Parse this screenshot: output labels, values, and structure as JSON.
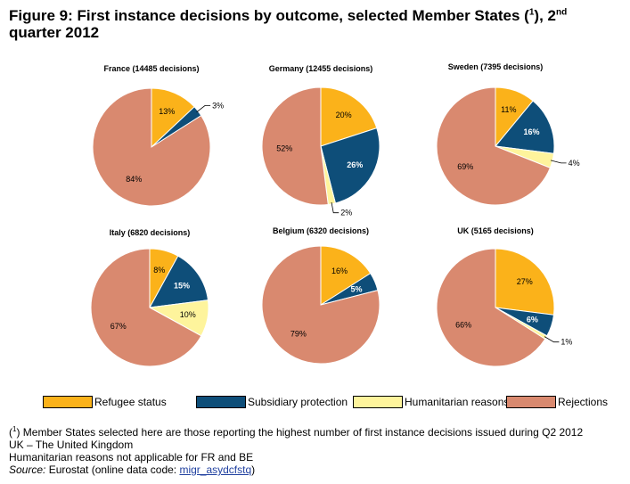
{
  "title": {
    "main": "Figure 9: First instance decisions by outcome, selected Member States (",
    "sup1": "1",
    "mid": "), 2",
    "sup2": "nd",
    "line2": "quarter 2012"
  },
  "colors": {
    "Refugee status": "#FBB21A",
    "Subsidiary protection": "#0E4E79",
    "Humanitarian reasons": "#FEF49C",
    "Rejections": "#D9896F"
  },
  "chart_data": [
    {
      "type": "pie",
      "title": "France (14485 decisions)",
      "categories": [
        "Refugee status",
        "Subsidiary protection",
        "Rejections"
      ],
      "values": [
        13,
        3,
        84
      ],
      "labels": [
        "13%",
        "3%",
        "84%"
      ]
    },
    {
      "type": "pie",
      "title": "Germany (12455 decisions)",
      "categories": [
        "Refugee status",
        "Subsidiary protection",
        "Humanitarian reasons",
        "Rejections"
      ],
      "values": [
        20,
        26,
        2,
        52
      ],
      "labels": [
        "20%",
        "26%",
        "2%",
        "52%"
      ]
    },
    {
      "type": "pie",
      "title": "Sweden (7395 decisions)",
      "categories": [
        "Refugee status",
        "Subsidiary protection",
        "Humanitarian reasons",
        "Rejections"
      ],
      "values": [
        11,
        16,
        4,
        69
      ],
      "labels": [
        "11%",
        "16%",
        "4%",
        "69%"
      ]
    },
    {
      "type": "pie",
      "title": "Italy (6820 decisions)",
      "categories": [
        "Refugee status",
        "Subsidiary protection",
        "Humanitarian reasons",
        "Rejections"
      ],
      "values": [
        8,
        15,
        10,
        67
      ],
      "labels": [
        "8%",
        "15%",
        "10%",
        "67%"
      ]
    },
    {
      "type": "pie",
      "title": "Belgium (6320 decisions)",
      "categories": [
        "Refugee status",
        "Subsidiary protection",
        "Rejections"
      ],
      "values": [
        16,
        5,
        79
      ],
      "labels": [
        "16%",
        "5%",
        "79%"
      ]
    },
    {
      "type": "pie",
      "title": "UK (5165 decisions)",
      "categories": [
        "Refugee status",
        "Subsidiary protection",
        "Humanitarian reasons",
        "Rejections"
      ],
      "values": [
        27,
        6,
        1,
        66
      ],
      "labels": [
        "27%",
        "6%",
        "1%",
        "66%"
      ]
    }
  ],
  "legend": {
    "placement": "bottom",
    "items": [
      "Refugee status",
      "Subsidiary protection",
      "Humanitarian reasons",
      "Rejections"
    ]
  },
  "footnotes": {
    "note1_sup": "1",
    "note1_text": " Member States selected here are those reporting the highest number of first instance decisions issued during Q2 2012",
    "note2": "UK – The United Kingdom",
    "note3": "Humanitarian reasons not applicable for FR and BE",
    "source_label": "Source:",
    "source_text": " Eurostat (online data code: ",
    "source_code": "migr_asydcfstq",
    "source_end": ")"
  }
}
